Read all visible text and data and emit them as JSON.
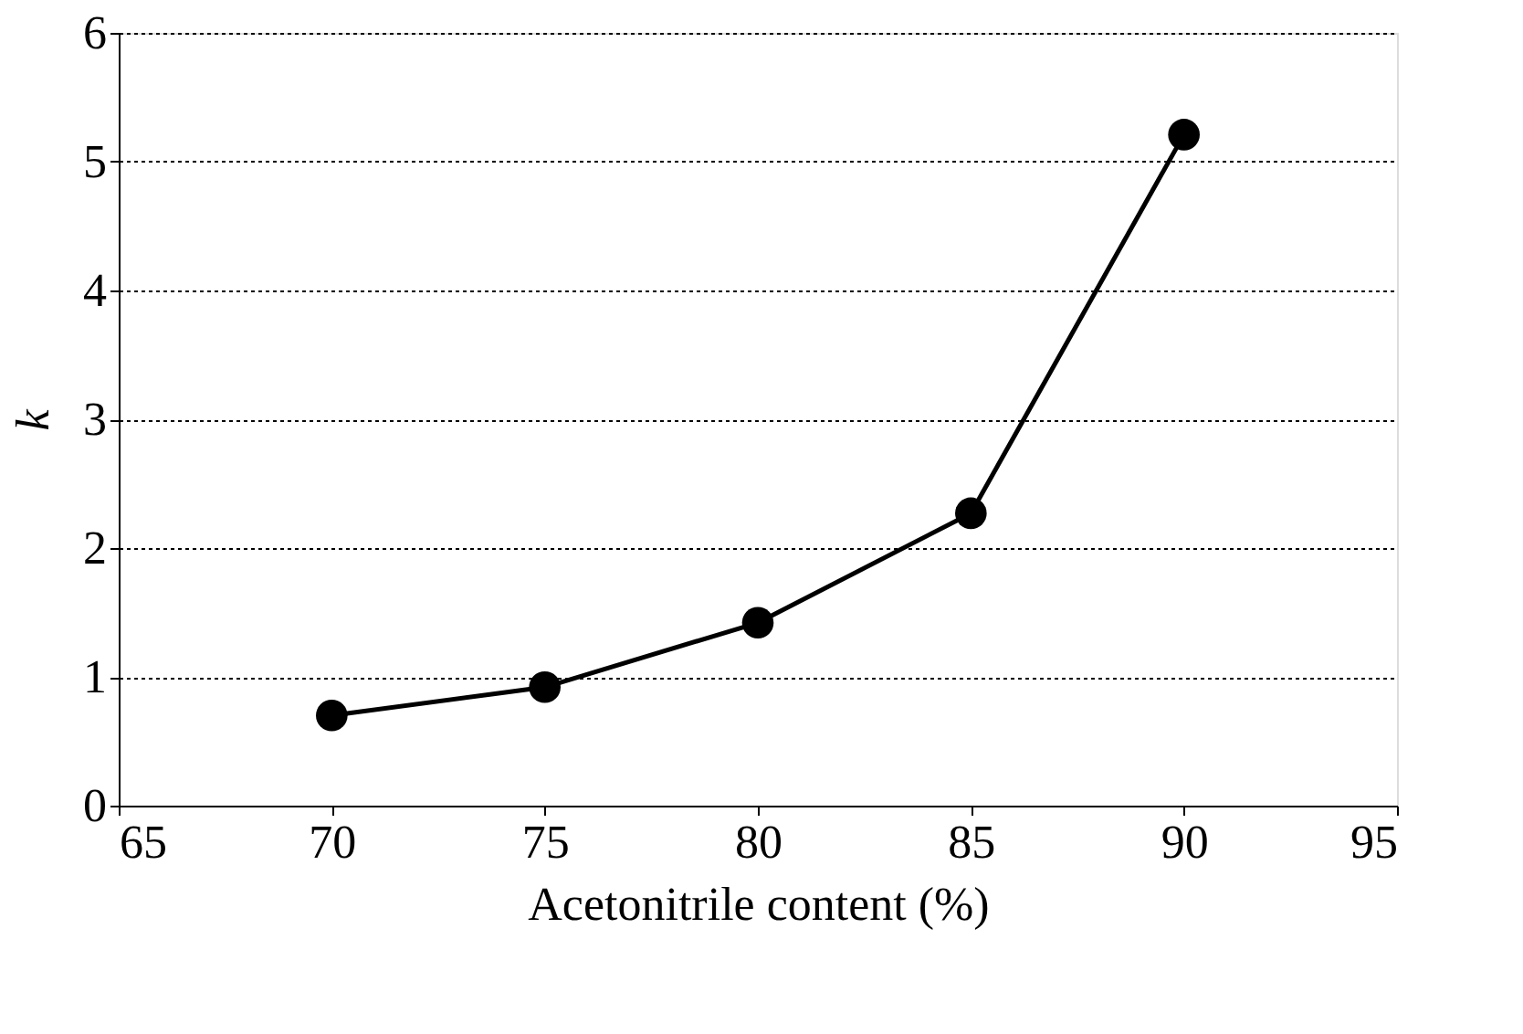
{
  "chart_data": {
    "type": "line",
    "xlabel": "Acetonitrile content (%)",
    "ylabel": "k",
    "x": [
      70,
      75,
      80,
      85,
      90
    ],
    "series": [
      {
        "color": "#000000",
        "values": [
          0.7,
          0.92,
          1.42,
          2.27,
          5.21
        ]
      }
    ],
    "xlim": [
      65,
      95
    ],
    "xticks": [
      65,
      70,
      75,
      80,
      85,
      90,
      95
    ],
    "ylim": [
      0,
      6
    ],
    "yticks": [
      0,
      1,
      2,
      3,
      4,
      5,
      6
    ],
    "grid": "y",
    "legend": false,
    "marker": "circle",
    "line_style": "solid"
  }
}
